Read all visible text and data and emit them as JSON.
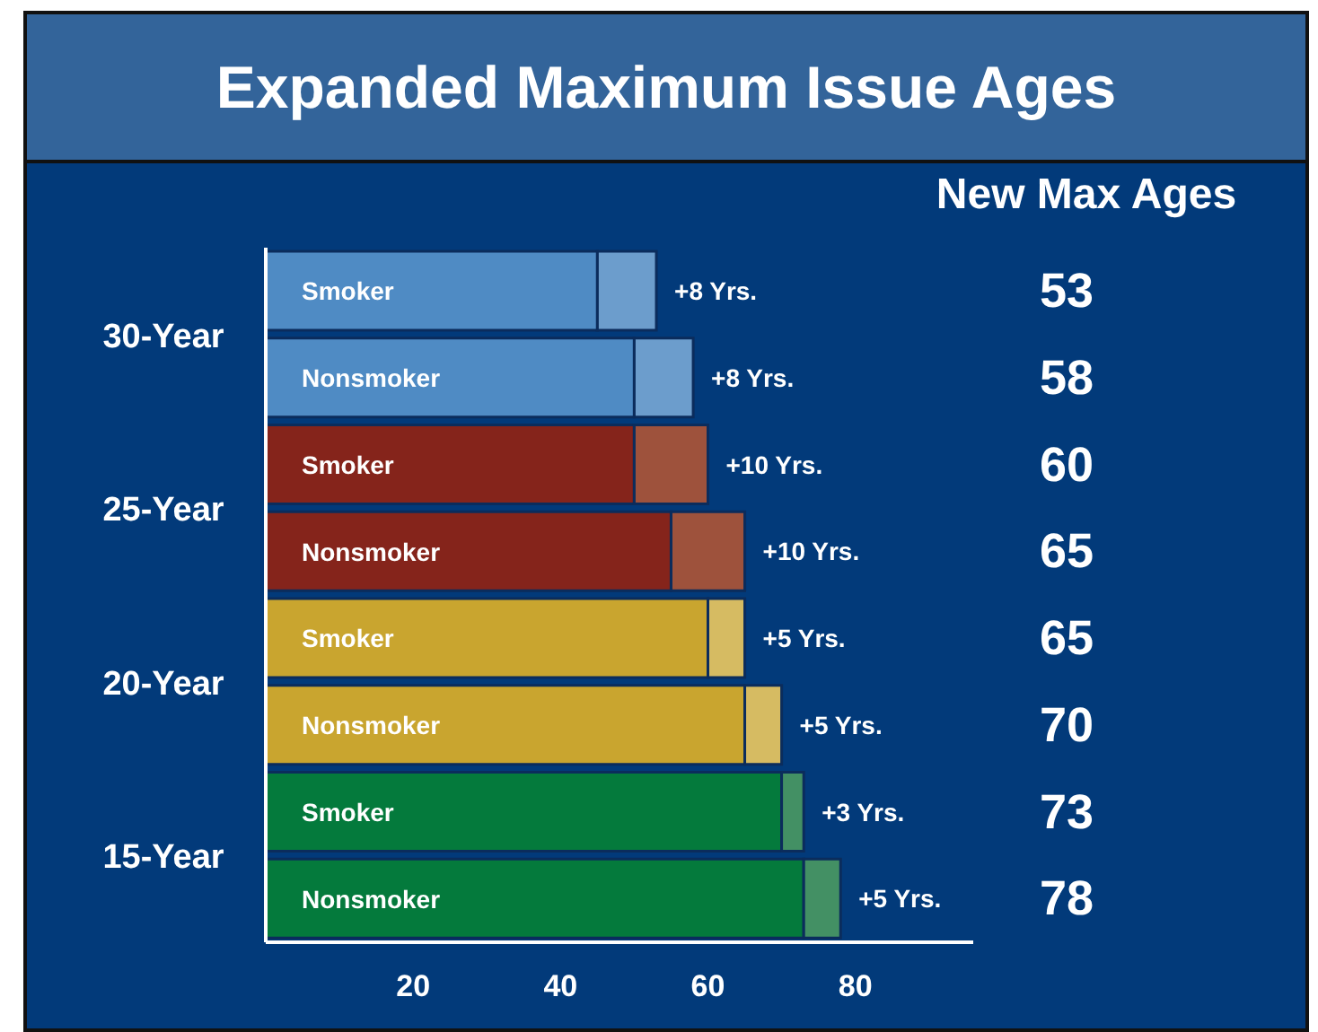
{
  "chart_data": {
    "type": "bar",
    "orientation": "horizontal",
    "stacked": true,
    "title": "Expanded Maximum Issue Ages",
    "categories": [
      "Smoker",
      "Nonsmoker",
      "Smoker",
      "Nonsmoker",
      "Smoker",
      "Nonsmoker",
      "Smoker",
      "Nonsmoker"
    ],
    "series": [
      {
        "values": [
          45,
          50,
          50,
          55,
          60,
          65,
          70,
          73
        ],
        "colors": [
          "#4f8bc4",
          "#4f8bc4",
          "#85241b",
          "#85241b",
          "#c9a52f",
          "#c9a52f",
          "#047a3c",
          "#047a3c"
        ]
      },
      {
        "values": [
          8,
          8,
          10,
          10,
          5,
          5,
          3,
          5
        ],
        "colors": [
          "#6c9dcc",
          "#6c9dcc",
          "#9e523c",
          "#9e523c",
          "#d6bb62",
          "#d6bb62",
          "#439064",
          "#439064"
        ],
        "value_labels": [
          "+8 Yrs.",
          "+8 Yrs.",
          "+10 Yrs.",
          "+10 Yrs.",
          "+5 Yrs.",
          "+5 Yrs.",
          "+3 Yrs.",
          "+5 Yrs."
        ]
      }
    ],
    "xlim": [
      0,
      96
    ],
    "xticks": [
      20,
      40,
      60,
      80
    ],
    "annotations": [
      "New Max Ages",
      "30-Year",
      "25-Year",
      "20-Year",
      "15-Year",
      "53",
      "58",
      "60",
      "65",
      "65",
      "70",
      "73",
      "78"
    ]
  }
}
